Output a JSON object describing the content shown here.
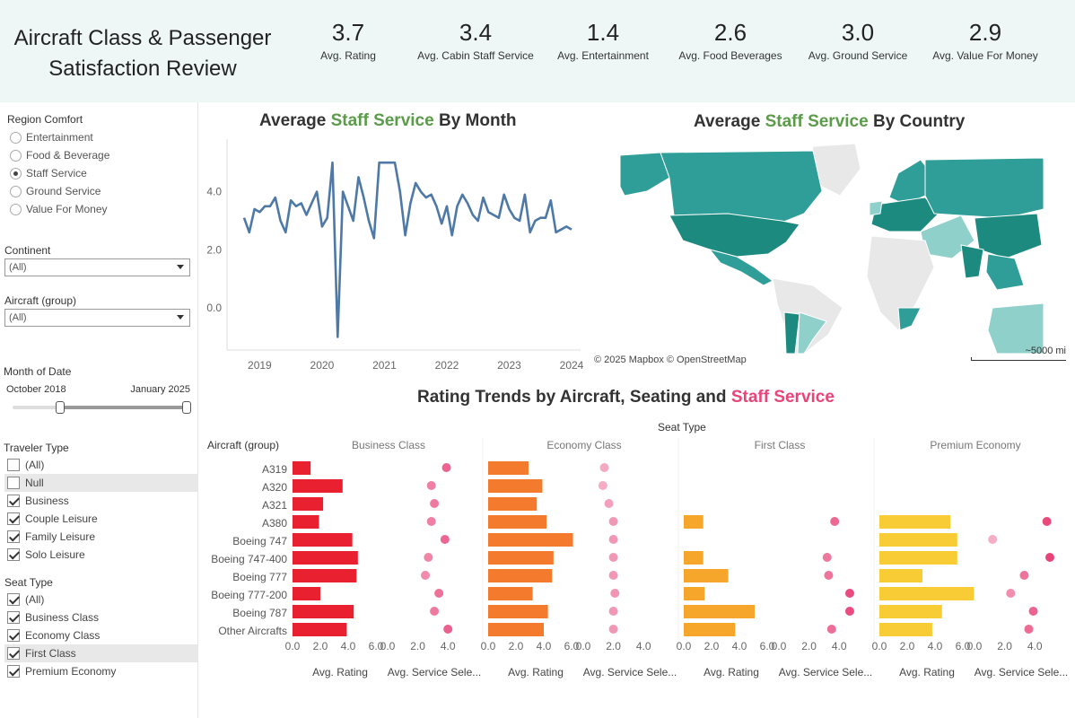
{
  "header": {
    "title_line1": "Aircraft Class & Passenger",
    "title_line2": "Satisfaction Review",
    "kpis": [
      {
        "value": "3.7",
        "label": "Avg. Rating"
      },
      {
        "value": "3.4",
        "label": "Avg. Cabin Staff Service"
      },
      {
        "value": "1.4",
        "label": "Avg. Entertainment"
      },
      {
        "value": "2.6",
        "label": "Avg. Food Beverages"
      },
      {
        "value": "3.0",
        "label": "Avg. Ground Service"
      },
      {
        "value": "2.9",
        "label": "Avg. Value For Money"
      }
    ]
  },
  "sidebar": {
    "region_comfort": {
      "title": "Region Comfort",
      "options": [
        "Entertainment",
        "Food & Beverage",
        "Staff Service",
        "Ground Service",
        "Value For Money"
      ],
      "selected": "Staff Service"
    },
    "continent": {
      "title": "Continent",
      "value": "(All)"
    },
    "aircraft_group": {
      "title": "Aircraft (group)",
      "value": "(All)"
    },
    "month_of_date": {
      "title": "Month of Date",
      "start": "October 2018",
      "end": "January 2025"
    },
    "traveler_type": {
      "title": "Traveler Type",
      "items": [
        {
          "label": "(All)",
          "checked": false
        },
        {
          "label": "Null",
          "checked": false
        },
        {
          "label": "Business",
          "checked": true
        },
        {
          "label": "Couple Leisure",
          "checked": true
        },
        {
          "label": "Family Leisure",
          "checked": true
        },
        {
          "label": "Solo Leisure",
          "checked": true
        }
      ]
    },
    "seat_type": {
      "title": "Seat Type",
      "items": [
        {
          "label": "(All)",
          "checked": true
        },
        {
          "label": "Business Class",
          "checked": true
        },
        {
          "label": "Economy Class",
          "checked": true
        },
        {
          "label": "First Class",
          "checked": true
        },
        {
          "label": "Premium Economy",
          "checked": true
        }
      ]
    }
  },
  "line_panel": {
    "title_pre": "Average ",
    "title_hl": "Staff Service",
    "title_post": " By Month"
  },
  "map_panel": {
    "title_pre": "Average ",
    "title_hl": "Staff Service",
    "title_post": " By Country",
    "attribution": "© 2025 Mapbox  © OpenStreetMap",
    "scale": "~5000 mi",
    "colors": {
      "dark": "#1d8a80",
      "mid": "#2f9e98",
      "light": "#8fd0cb",
      "none": "#e8e8e8"
    }
  },
  "bar_panel": {
    "title_pre": "Rating Trends by Aircraft, Seating  and  ",
    "title_hl": "Staff Service",
    "seat_type_header": "Seat Type",
    "row_header": "Aircraft (group)",
    "rating_axis_label": "Avg. Rating",
    "service_axis_label": "Avg. Service Sele...",
    "rating_ticks": [
      "0.0",
      "2.0",
      "4.0",
      "6.0"
    ],
    "service_ticks": [
      "0.0",
      "2.0",
      "4.0"
    ],
    "colors": {
      "Business Class": "#e8202f",
      "Economy Class": "#f47a2e",
      "First Class": "#f5a62b",
      "Premium Economy": "#f7cc35"
    }
  },
  "chart_data": [
    {
      "type": "line",
      "x": [
        "2018-10",
        "2018-11",
        "2018-12",
        "2019-01",
        "2019-02",
        "2019-03",
        "2019-04",
        "2019-05",
        "2019-06",
        "2019-07",
        "2019-08",
        "2019-09",
        "2019-10",
        "2019-11",
        "2019-12",
        "2020-01",
        "2020-02",
        "2020-03",
        "2020-04",
        "2020-05",
        "2020-06",
        "2020-07",
        "2020-08",
        "2020-09",
        "2020-10",
        "2020-11",
        "2020-12",
        "2021-01",
        "2021-02",
        "2021-03",
        "2021-04",
        "2021-05",
        "2021-06",
        "2021-07",
        "2021-08",
        "2021-09",
        "2021-10",
        "2021-11",
        "2021-12",
        "2022-01",
        "2022-02",
        "2022-03",
        "2022-04",
        "2022-05",
        "2022-06",
        "2022-07",
        "2022-08",
        "2022-09",
        "2022-10",
        "2022-11",
        "2022-12",
        "2023-01",
        "2023-02",
        "2023-03",
        "2023-04",
        "2023-05",
        "2023-06",
        "2023-07",
        "2023-08",
        "2023-09",
        "2023-10",
        "2023-11",
        "2023-12",
        "2024-01"
      ],
      "values": [
        3.1,
        2.6,
        3.4,
        3.3,
        3.5,
        3.5,
        3.8,
        3.0,
        2.6,
        3.7,
        3.5,
        3.6,
        3.2,
        3.6,
        4.0,
        2.8,
        3.1,
        5.0,
        -1.0,
        4.0,
        3.5,
        3.0,
        4.5,
        3.8,
        3.0,
        2.4,
        5.0,
        5.0,
        5.0,
        5.0,
        4.0,
        2.5,
        3.6,
        4.3,
        4.0,
        3.8,
        3.9,
        3.5,
        2.9,
        3.5,
        2.5,
        3.5,
        3.9,
        3.6,
        3.2,
        3.0,
        3.8,
        3.3,
        3.2,
        3.1,
        3.9,
        3.4,
        3.1,
        3.0,
        3.9,
        2.6,
        3.0,
        3.1,
        3.1,
        3.7,
        2.6,
        2.7,
        2.8,
        2.7
      ],
      "xticks": [
        "2019",
        "2020",
        "2021",
        "2022",
        "2023",
        "2024"
      ],
      "yticks": [
        "0.0",
        "2.0",
        "4.0"
      ],
      "ylim": [
        -1.2,
        5.5
      ]
    },
    {
      "type": "bar",
      "categories": [
        "A319",
        "A320",
        "A321",
        "A380",
        "Boeing 747",
        "Boeing 747-400",
        "Boeing 777",
        "Boeing 777-200",
        "Boeing 787",
        "Other Aircrafts"
      ],
      "series": [
        {
          "name": "Business Class",
          "avg_rating": [
            1.3,
            3.6,
            2.2,
            1.9,
            4.3,
            4.7,
            4.6,
            2.0,
            4.4,
            3.9
          ],
          "avg_service": [
            3.9,
            2.9,
            3.1,
            2.9,
            3.8,
            2.7,
            2.5,
            3.4,
            3.1,
            4.0
          ]
        },
        {
          "name": "Economy Class",
          "avg_rating": [
            2.9,
            3.9,
            3.5,
            4.2,
            6.1,
            4.7,
            4.6,
            3.2,
            4.3,
            4.0
          ],
          "avg_service": [
            1.4,
            1.3,
            1.7,
            2.0,
            2.0,
            2.0,
            2.0,
            2.1,
            2.0,
            2.0
          ]
        },
        {
          "name": "First Class",
          "avg_rating": [
            null,
            null,
            null,
            1.4,
            null,
            1.4,
            3.2,
            1.5,
            5.1,
            3.7
          ],
          "avg_service": [
            null,
            null,
            null,
            3.7,
            null,
            3.2,
            3.3,
            4.7,
            4.7,
            3.5
          ]
        },
        {
          "name": "Premium Economy",
          "avg_rating": [
            null,
            null,
            null,
            5.1,
            5.6,
            5.6,
            3.1,
            6.8,
            4.5,
            3.8
          ],
          "avg_service": [
            null,
            null,
            null,
            4.8,
            1.2,
            5.0,
            3.3,
            2.4,
            3.9,
            3.6
          ]
        }
      ],
      "rating_xlim": [
        0,
        7
      ],
      "service_xlim": [
        0,
        5
      ]
    }
  ]
}
